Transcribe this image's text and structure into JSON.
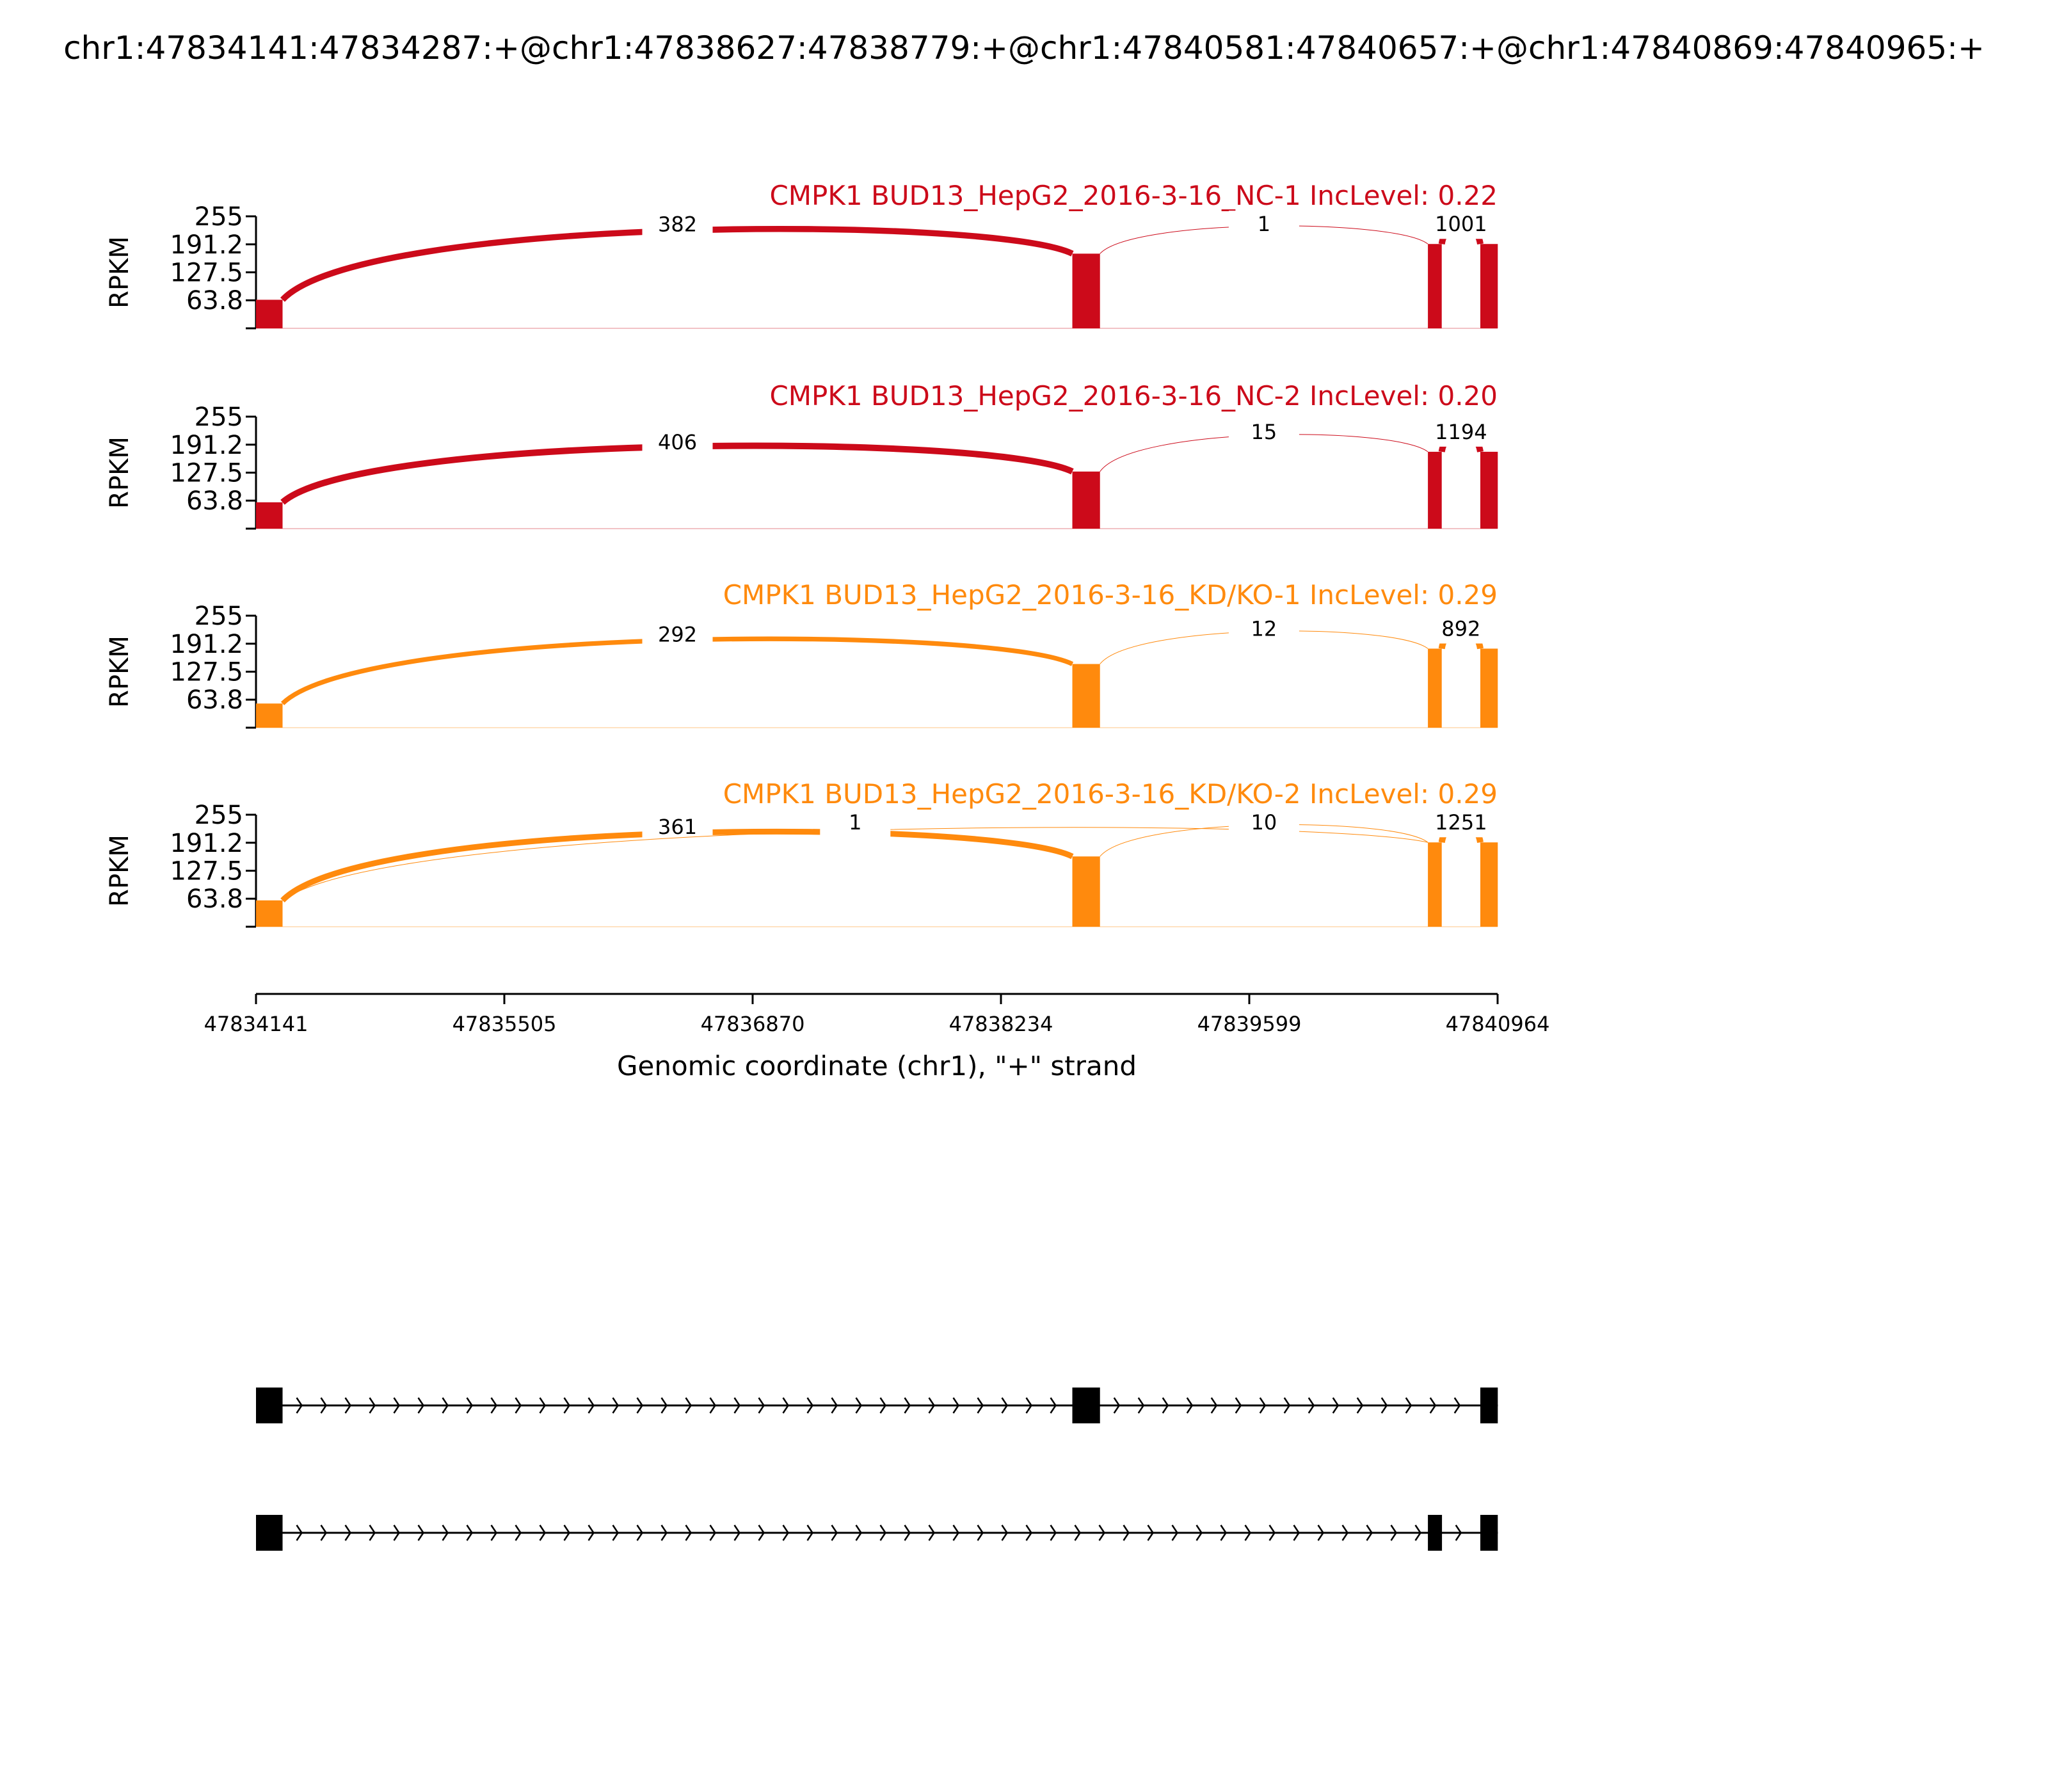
{
  "figure": {
    "title": "chr1:47834141:47834287:+@chr1:47838627:47838779:+@chr1:47840581:47840657:+@chr1:47840869:47840965:+"
  },
  "chart_data": {
    "type": "sashimi",
    "ylabel": "RPKM",
    "xlabel": "Genomic coordinate (chr1), \"+\" strand",
    "xlim": [
      47834141,
      47840964
    ],
    "x_ticks": [
      "47834141",
      "47835505",
      "47836870",
      "47838234",
      "47839599",
      "47840964"
    ],
    "ylim": [
      0,
      255
    ],
    "y_ticks": [
      "255",
      "191.2",
      "127.5",
      "63.8"
    ],
    "exons": [
      {
        "start": 47834141,
        "end": 47834287
      },
      {
        "start": 47838627,
        "end": 47838779
      },
      {
        "start": 47840581,
        "end": 47840657
      },
      {
        "start": 47840869,
        "end": 47840965
      }
    ],
    "tracks": [
      {
        "name": "CMPK1 BUD13_HepG2_2016-3-16_NC-1 IncLevel: 0.22",
        "color": "#cc0a1a",
        "coverage": [
          {
            "start": 47834141,
            "end": 47834287,
            "level": 65
          },
          {
            "start": 47838627,
            "end": 47838779,
            "level": 170
          },
          {
            "start": 47840581,
            "end": 47840657,
            "level": 192
          },
          {
            "start": 47840869,
            "end": 47840965,
            "level": 192
          }
        ],
        "junctions": [
          {
            "from": 47834287,
            "to": 47838627,
            "count": "382"
          },
          {
            "from": 47838779,
            "to": 47840581,
            "count": "1"
          },
          {
            "from": 47840657,
            "to": 47840869,
            "count": "1001"
          }
        ]
      },
      {
        "name": "CMPK1 BUD13_HepG2_2016-3-16_NC-2 IncLevel: 0.20",
        "color": "#cc0a1a",
        "coverage": [
          {
            "start": 47834141,
            "end": 47834287,
            "level": 60
          },
          {
            "start": 47838627,
            "end": 47838779,
            "level": 130
          },
          {
            "start": 47840581,
            "end": 47840657,
            "level": 175
          },
          {
            "start": 47840869,
            "end": 47840965,
            "level": 175
          }
        ],
        "junctions": [
          {
            "from": 47834287,
            "to": 47838627,
            "count": "406"
          },
          {
            "from": 47838779,
            "to": 47840581,
            "count": "15"
          },
          {
            "from": 47840657,
            "to": 47840869,
            "count": "1194"
          }
        ]
      },
      {
        "name": "CMPK1 BUD13_HepG2_2016-3-16_KD/KO-1 IncLevel: 0.29",
        "color": "#ff8a0d",
        "coverage": [
          {
            "start": 47834141,
            "end": 47834287,
            "level": 55
          },
          {
            "start": 47838627,
            "end": 47838779,
            "level": 145
          },
          {
            "start": 47840581,
            "end": 47840657,
            "level": 180
          },
          {
            "start": 47840869,
            "end": 47840965,
            "level": 180
          }
        ],
        "junctions": [
          {
            "from": 47834287,
            "to": 47838627,
            "count": "292"
          },
          {
            "from": 47838779,
            "to": 47840581,
            "count": "12"
          },
          {
            "from": 47840657,
            "to": 47840869,
            "count": "892"
          }
        ]
      },
      {
        "name": "CMPK1 BUD13_HepG2_2016-3-16_KD/KO-2 IncLevel: 0.29",
        "color": "#ff8a0d",
        "coverage": [
          {
            "start": 47834141,
            "end": 47834287,
            "level": 60
          },
          {
            "start": 47838627,
            "end": 47838779,
            "level": 160
          },
          {
            "start": 47840581,
            "end": 47840657,
            "level": 192
          },
          {
            "start": 47840869,
            "end": 47840965,
            "level": 192
          }
        ],
        "junctions": [
          {
            "from": 47834287,
            "to": 47838627,
            "count": "361"
          },
          {
            "from": 47834287,
            "to": 47840581,
            "count": "1"
          },
          {
            "from": 47838779,
            "to": 47840581,
            "count": "10"
          },
          {
            "from": 47840657,
            "to": 47840869,
            "count": "1251"
          }
        ]
      }
    ],
    "isoforms": [
      {
        "exons": [
          [
            47834141,
            47834287
          ],
          [
            47838627,
            47838779
          ],
          [
            47840869,
            47840965
          ]
        ]
      },
      {
        "exons": [
          [
            47834141,
            47834287
          ],
          [
            47840581,
            47840657
          ],
          [
            47840869,
            47840965
          ]
        ]
      }
    ]
  }
}
